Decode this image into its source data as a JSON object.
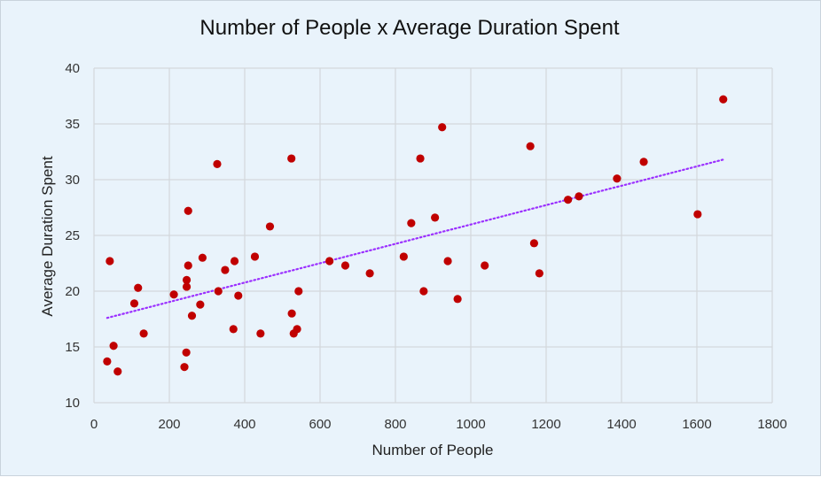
{
  "chart_data": {
    "type": "scatter",
    "title": "Number of People x Average Duration Spent",
    "xlabel": "Number of People",
    "ylabel": "Average Duration Spent",
    "xlim": [
      0,
      1800
    ],
    "ylim": [
      10,
      40
    ],
    "xticks": [
      "0",
      "200",
      "400",
      "600",
      "800",
      "1000",
      "1200",
      "1400",
      "1600",
      "1800"
    ],
    "yticks": [
      "10",
      "15",
      "20",
      "25",
      "30",
      "35",
      "40"
    ],
    "grid": true,
    "legend": "none",
    "colors": {
      "points": "#c00000",
      "trendline": "#9b30ff",
      "background": "#e9f3fb",
      "grid": "#d4d8dc"
    },
    "trendline": {
      "type": "linear",
      "dotted": true,
      "x": [
        35,
        1670
      ],
      "y": [
        17.6,
        31.8
      ]
    },
    "points": [
      {
        "x": 35,
        "y": 13.7
      },
      {
        "x": 42,
        "y": 22.7
      },
      {
        "x": 52,
        "y": 15.1
      },
      {
        "x": 63,
        "y": 12.8
      },
      {
        "x": 107,
        "y": 18.9
      },
      {
        "x": 117,
        "y": 20.3
      },
      {
        "x": 132,
        "y": 16.2
      },
      {
        "x": 212,
        "y": 19.7
      },
      {
        "x": 240,
        "y": 13.2
      },
      {
        "x": 245,
        "y": 14.5
      },
      {
        "x": 246,
        "y": 21.0
      },
      {
        "x": 246,
        "y": 20.4
      },
      {
        "x": 250,
        "y": 22.3
      },
      {
        "x": 250,
        "y": 27.2
      },
      {
        "x": 260,
        "y": 17.8
      },
      {
        "x": 282,
        "y": 18.8
      },
      {
        "x": 288,
        "y": 23.0
      },
      {
        "x": 327,
        "y": 31.4
      },
      {
        "x": 330,
        "y": 20.0
      },
      {
        "x": 348,
        "y": 21.9
      },
      {
        "x": 370,
        "y": 16.6
      },
      {
        "x": 373,
        "y": 22.7
      },
      {
        "x": 383,
        "y": 19.6
      },
      {
        "x": 427,
        "y": 23.1
      },
      {
        "x": 442,
        "y": 16.2
      },
      {
        "x": 467,
        "y": 25.8
      },
      {
        "x": 524,
        "y": 31.9
      },
      {
        "x": 525,
        "y": 18.0
      },
      {
        "x": 530,
        "y": 16.2
      },
      {
        "x": 539,
        "y": 16.6
      },
      {
        "x": 543,
        "y": 20.0
      },
      {
        "x": 625,
        "y": 22.7
      },
      {
        "x": 667,
        "y": 22.3
      },
      {
        "x": 732,
        "y": 21.6
      },
      {
        "x": 822,
        "y": 23.1
      },
      {
        "x": 842,
        "y": 26.1
      },
      {
        "x": 866,
        "y": 31.9
      },
      {
        "x": 875,
        "y": 20.0
      },
      {
        "x": 905,
        "y": 26.6
      },
      {
        "x": 924,
        "y": 34.7
      },
      {
        "x": 939,
        "y": 22.7
      },
      {
        "x": 965,
        "y": 19.3
      },
      {
        "x": 1037,
        "y": 22.3
      },
      {
        "x": 1158,
        "y": 33.0
      },
      {
        "x": 1168,
        "y": 24.3
      },
      {
        "x": 1182,
        "y": 21.6
      },
      {
        "x": 1258,
        "y": 28.2
      },
      {
        "x": 1287,
        "y": 28.5
      },
      {
        "x": 1388,
        "y": 30.1
      },
      {
        "x": 1459,
        "y": 31.6
      },
      {
        "x": 1602,
        "y": 26.9
      },
      {
        "x": 1670,
        "y": 37.2
      }
    ]
  }
}
